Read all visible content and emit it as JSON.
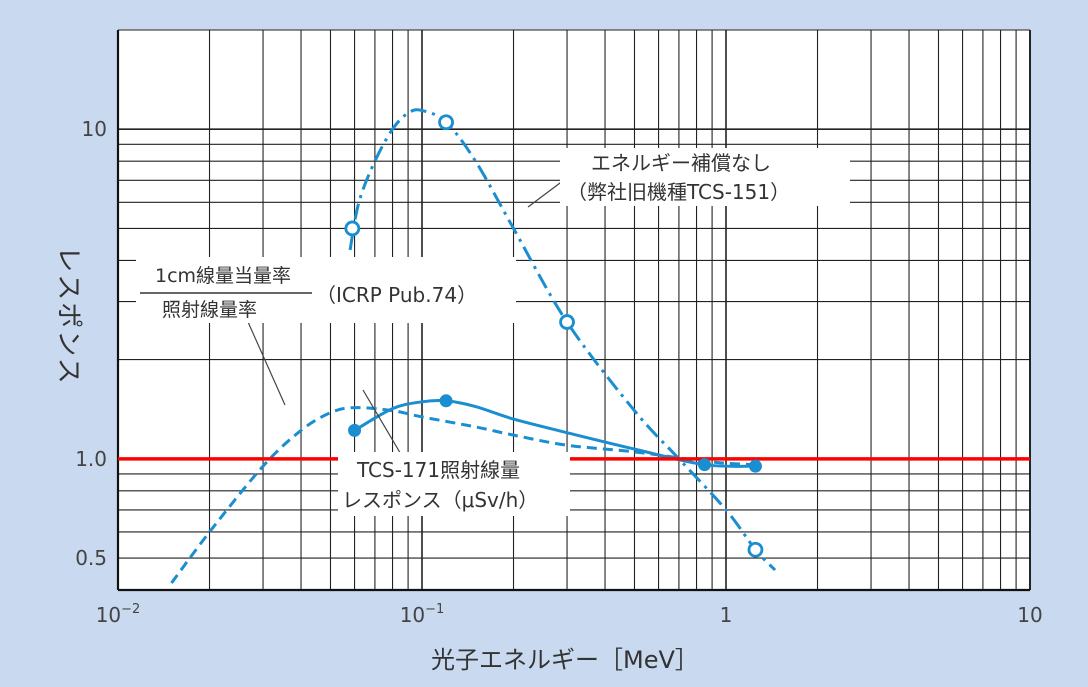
{
  "chart_data": {
    "type": "line",
    "xlabel": "光子エネルギー［MeV］",
    "ylabel": "レスポンス",
    "x_scale": "log",
    "y_scale": "log",
    "xlim": [
      0.01,
      10
    ],
    "ylim": [
      0.4,
      20
    ],
    "grid": true,
    "x_ticks": [
      {
        "value": 0.01,
        "base": "10",
        "exp": "−2"
      },
      {
        "value": 0.1,
        "base": "10",
        "exp": "−1"
      },
      {
        "value": 1,
        "base": "1",
        "exp": ""
      },
      {
        "value": 10,
        "base": "10",
        "exp": ""
      }
    ],
    "y_ticks": [
      {
        "value": 0.5,
        "label": "0.5"
      },
      {
        "value": 1.0,
        "label": "1.0"
      },
      {
        "value": 10,
        "label": "10"
      }
    ],
    "reference_line": {
      "y": 1.0,
      "color": "#ff0000"
    },
    "series": [
      {
        "name": "エネルギー補償なし（弊社旧機種TCS-151）",
        "style": "dash-dot",
        "marker": "open-circle",
        "color": "#1a8ed0",
        "points": [
          {
            "x": 0.059,
            "y": 5.0
          },
          {
            "x": 0.12,
            "y": 10.5
          },
          {
            "x": 0.3,
            "y": 2.6
          },
          {
            "x": 1.25,
            "y": 0.53
          }
        ],
        "curve": [
          [
            0.058,
            4.3
          ],
          [
            0.062,
            6.0
          ],
          [
            0.07,
            8.0
          ],
          [
            0.08,
            10.0
          ],
          [
            0.09,
            11.2
          ],
          [
            0.1,
            11.4
          ],
          [
            0.12,
            10.5
          ],
          [
            0.15,
            8.0
          ],
          [
            0.2,
            5.0
          ],
          [
            0.3,
            2.6
          ],
          [
            0.5,
            1.4
          ],
          [
            0.7,
            1.0
          ],
          [
            1.0,
            0.7
          ],
          [
            1.25,
            0.53
          ],
          [
            1.45,
            0.46
          ]
        ]
      },
      {
        "name": "1cm線量当量率／照射線量率（ICRP Pub.74）",
        "style": "dashed",
        "marker": "none",
        "color": "#1a8ed0",
        "points": [],
        "curve": [
          [
            0.015,
            0.42
          ],
          [
            0.02,
            0.6
          ],
          [
            0.03,
            0.95
          ],
          [
            0.04,
            1.22
          ],
          [
            0.05,
            1.38
          ],
          [
            0.06,
            1.43
          ],
          [
            0.08,
            1.4
          ],
          [
            0.1,
            1.34
          ],
          [
            0.15,
            1.25
          ],
          [
            0.2,
            1.18
          ],
          [
            0.3,
            1.1
          ],
          [
            0.5,
            1.05
          ],
          [
            0.8,
            0.99
          ],
          [
            1.0,
            0.97
          ],
          [
            1.25,
            0.96
          ]
        ]
      },
      {
        "name": "TCS-171照射線量レスポンス（μSv/h）",
        "style": "solid",
        "marker": "filled-circle",
        "color": "#1a8ed0",
        "points": [
          {
            "x": 0.06,
            "y": 1.22
          },
          {
            "x": 0.12,
            "y": 1.5
          },
          {
            "x": 0.85,
            "y": 0.96
          },
          {
            "x": 1.25,
            "y": 0.95
          }
        ],
        "curve": [
          [
            0.06,
            1.22
          ],
          [
            0.08,
            1.42
          ],
          [
            0.1,
            1.49
          ],
          [
            0.12,
            1.5
          ],
          [
            0.15,
            1.44
          ],
          [
            0.2,
            1.32
          ],
          [
            0.3,
            1.2
          ],
          [
            0.5,
            1.07
          ],
          [
            0.85,
            0.96
          ],
          [
            1.25,
            0.95
          ]
        ]
      }
    ],
    "annotations": {
      "old_model": {
        "line1": "エネルギー補償なし",
        "line2": "（弊社旧機種TCS-151）"
      },
      "icrp": {
        "numerator": "1cm線量当量率",
        "denominator": "照射線量率",
        "ref": "（ICRP Pub.74）"
      },
      "tcs171": {
        "line1": "TCS-171照射線量",
        "line2": "レスポンス（μSv/h）"
      }
    }
  }
}
